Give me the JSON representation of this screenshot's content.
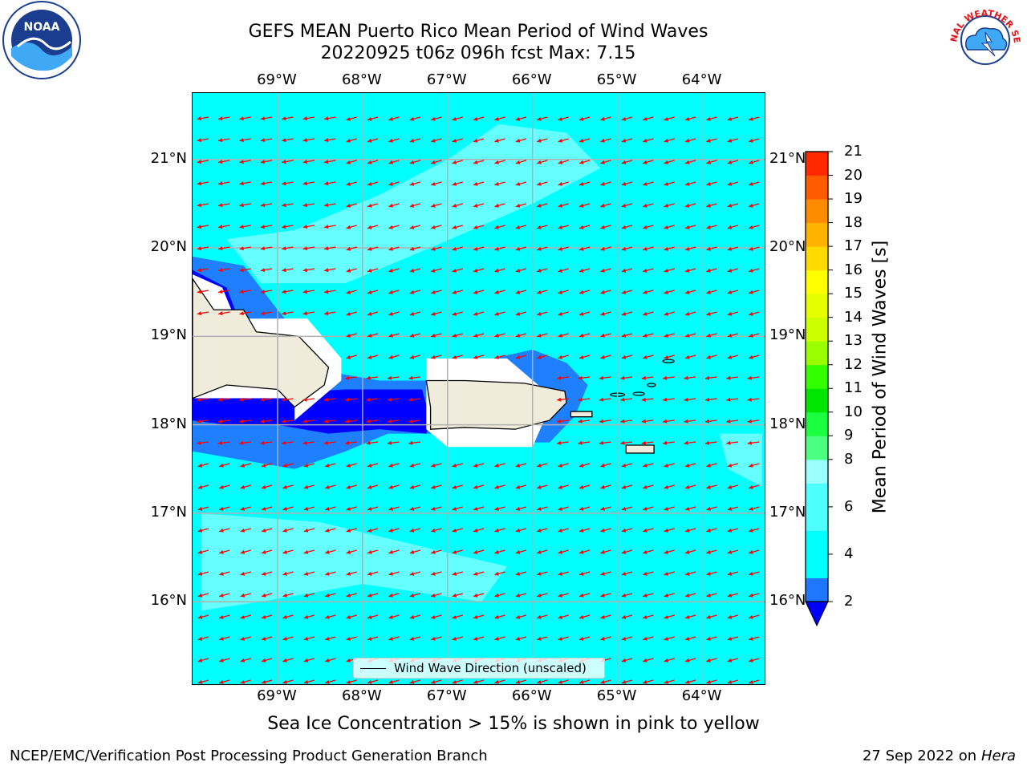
{
  "header": {
    "title_line1": "GEFS MEAN Puerto Rico Mean Period of Wind Waves",
    "title_line2": "20220925 t06z 096h fcst   Max: 7.15"
  },
  "axes": {
    "lon_labels": [
      "69°W",
      "68°W",
      "67°W",
      "66°W",
      "65°W",
      "64°W"
    ],
    "lat_labels": [
      "21°N",
      "20°N",
      "19°N",
      "18°N",
      "17°N",
      "16°N"
    ],
    "lon_values": [
      -69,
      -68,
      -67,
      -66,
      -65,
      -64
    ],
    "lat_values": [
      21,
      20,
      19,
      18,
      17,
      16
    ],
    "lon_range": [
      -70.0,
      -63.25
    ],
    "lat_range": [
      15.05,
      21.75
    ],
    "grid": true
  },
  "legend": {
    "label": "Wind Wave Direction (unscaled)"
  },
  "colorbar": {
    "title": "Mean Period of Wind Waves [s]",
    "levels": [
      2,
      3,
      4,
      5,
      6,
      7,
      8,
      9,
      10,
      11,
      12,
      13,
      14,
      15,
      16,
      17,
      18,
      19,
      20,
      21
    ],
    "tick_labels": [
      "21",
      "20",
      "19",
      "18",
      "17",
      "16",
      "15",
      "14",
      "13",
      "12",
      "11",
      "10",
      "9",
      "8",
      "6",
      "4",
      "2"
    ],
    "tick_values": [
      21,
      20,
      19,
      18,
      17,
      16,
      15,
      14,
      13,
      12,
      11,
      10,
      9,
      8,
      6,
      4,
      2
    ],
    "colors": [
      "#1f77ff",
      "#00ffff",
      "#00ffff",
      "#4dffff",
      "#4dffff",
      "#99ffff",
      "#4dff80",
      "#1aff40",
      "#00e600",
      "#33ff00",
      "#99ff00",
      "#ccff00",
      "#e6ff00",
      "#ffff00",
      "#ffd900",
      "#ffb300",
      "#ff8c00",
      "#ff5a00",
      "#ff2a00"
    ],
    "under_color": "#0000ff"
  },
  "map": {
    "field": {
      "base_color": "#00ffff",
      "light_color": "#66ffff",
      "mid_color": "#1e7fff",
      "deep_color": "#0000ff",
      "land_color": "#efecdc",
      "nodata_color": "#ffffff"
    },
    "arrows": {
      "color": "#ff0000",
      "direction_from_deg": 60
    }
  },
  "note": "Sea Ice Concentration > 15% is shown in pink to yellow",
  "footer": {
    "left": "NCEP/EMC/Verification Post Processing Product Generation Branch",
    "right_date": "27 Sep 2022 on",
    "right_host": "Hera"
  },
  "logos": {
    "noaa": "NOAA",
    "nws": "NATIONAL WEATHER SERVICE"
  }
}
